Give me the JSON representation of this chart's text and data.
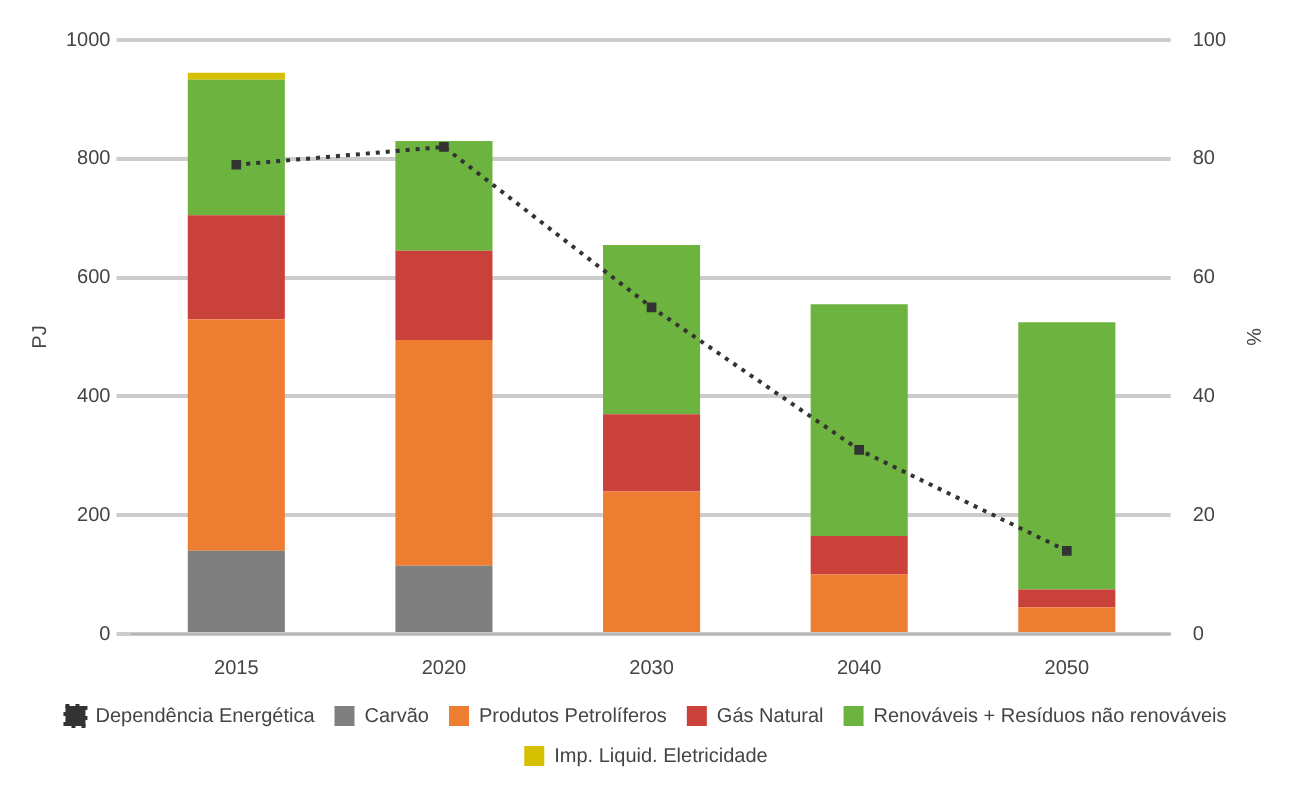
{
  "chart_data": {
    "type": "bar",
    "stacked": true,
    "categories": [
      "2015",
      "2020",
      "2030",
      "2040",
      "2050"
    ],
    "ylabel": "PJ",
    "y2label": "%",
    "ylim": [
      0,
      1000
    ],
    "yticks": [
      0,
      200,
      400,
      600,
      800,
      1000
    ],
    "y2lim": [
      0,
      100
    ],
    "y2ticks": [
      0,
      20,
      40,
      60,
      80,
      100
    ],
    "grid": "y",
    "legend": "bottom",
    "series": [
      {
        "name": "Carvão",
        "color": "#7f7f7f",
        "values": [
          140,
          115,
          null,
          null,
          null
        ]
      },
      {
        "name": "Produtos Petrolíferos",
        "color": "#ed7d31",
        "values": [
          390,
          380,
          240,
          100,
          45
        ]
      },
      {
        "name": "Gás Natural",
        "color": "#c9413a",
        "values": [
          175,
          150,
          130,
          65,
          30
        ]
      },
      {
        "name": "Renováveis + Resíduos não renováveis",
        "color": "#6db33f",
        "values": [
          228,
          185,
          285,
          390,
          450
        ]
      },
      {
        "name": "Imp. Liquid. Eletricidade",
        "color": "#d4c000",
        "values": [
          12,
          null,
          null,
          null,
          null
        ]
      },
      {
        "name": "Dependência Energética",
        "type": "line",
        "axis": "y2",
        "color": "#333333",
        "line_style": "dotted",
        "marker": "square",
        "values": [
          79,
          82,
          55,
          31,
          14
        ]
      }
    ]
  }
}
